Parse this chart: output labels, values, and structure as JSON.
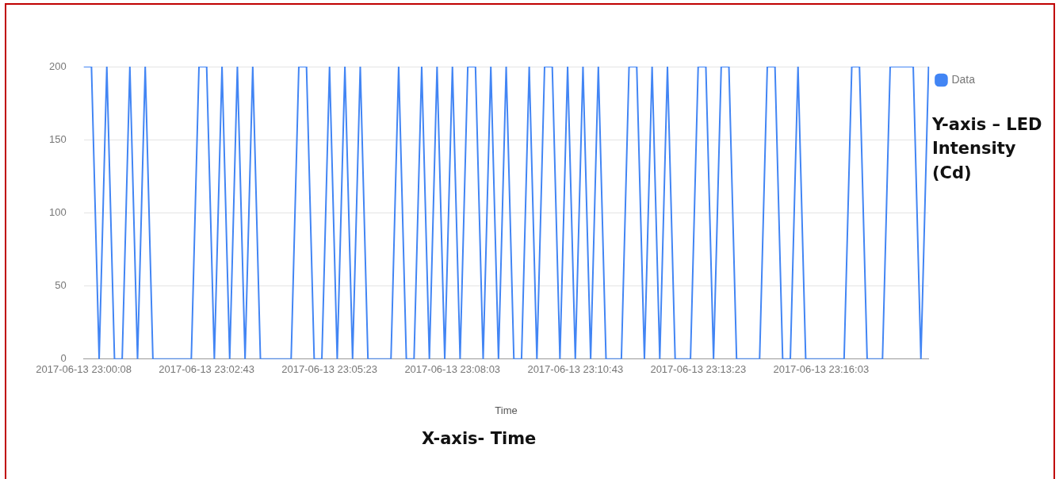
{
  "chart_data": {
    "type": "line",
    "xlabel": "Time",
    "categories": [
      "2017-06-13 23:00:08",
      null,
      null,
      null,
      null,
      null,
      null,
      null,
      null,
      null,
      null,
      null,
      null,
      null,
      null,
      null,
      "2017-06-13 23:02:43",
      null,
      null,
      null,
      null,
      null,
      null,
      null,
      null,
      null,
      null,
      null,
      null,
      null,
      null,
      null,
      "2017-06-13 23:05:23",
      null,
      null,
      null,
      null,
      null,
      null,
      null,
      null,
      null,
      null,
      null,
      null,
      null,
      null,
      null,
      "2017-06-13 23:08:03",
      null,
      null,
      null,
      null,
      null,
      null,
      null,
      null,
      null,
      null,
      null,
      null,
      null,
      null,
      null,
      "2017-06-13 23:10:43",
      null,
      null,
      null,
      null,
      null,
      null,
      null,
      null,
      null,
      null,
      null,
      null,
      null,
      null,
      null,
      "2017-06-13 23:13:23",
      null,
      null,
      null,
      null,
      null,
      null,
      null,
      null,
      null,
      null,
      null,
      null,
      null,
      null,
      null,
      "2017-06-13 23:16:03",
      null,
      null,
      null,
      null,
      null,
      null,
      null,
      null,
      null,
      null,
      null,
      null,
      null,
      null
    ],
    "series": [
      {
        "name": "Data",
        "color": "#4285f4",
        "values": [
          200,
          200,
          0,
          200,
          0,
          0,
          200,
          0,
          200,
          0,
          0,
          0,
          0,
          0,
          0,
          200,
          200,
          0,
          200,
          0,
          200,
          0,
          200,
          0,
          0,
          0,
          0,
          0,
          200,
          200,
          0,
          0,
          200,
          0,
          200,
          0,
          200,
          0,
          0,
          0,
          0,
          200,
          0,
          0,
          200,
          0,
          200,
          0,
          200,
          0,
          200,
          200,
          0,
          200,
          0,
          200,
          0,
          0,
          200,
          0,
          200,
          200,
          0,
          200,
          0,
          200,
          0,
          200,
          0,
          0,
          0,
          200,
          200,
          0,
          200,
          0,
          200,
          0,
          0,
          0,
          200,
          200,
          0,
          200,
          200,
          0,
          0,
          0,
          0,
          200,
          200,
          0,
          0,
          200,
          0,
          0,
          0,
          0,
          0,
          0,
          200,
          200,
          0,
          0,
          0,
          200,
          200,
          200,
          200,
          0,
          200
        ]
      }
    ],
    "ylim": [
      0,
      200
    ],
    "yticks": [
      0,
      50,
      100,
      150,
      200
    ],
    "grid": "y",
    "legend": "top right",
    "marker": "none",
    "line_style": "solid",
    "annotations": [
      "Y-axis – LED Intensity (Cd)",
      "X-axis- Time"
    ]
  }
}
